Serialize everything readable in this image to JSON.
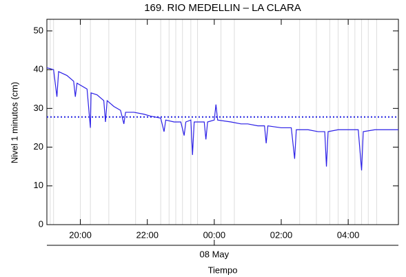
{
  "chart_data": {
    "type": "line",
    "title": "169. RIO MEDELLIN – LA CLARA",
    "ylabel": "Nivel 1 minutos (cm)",
    "xlabel": "Tiempo",
    "xlim": [
      19.0,
      29.5
    ],
    "ylim": [
      0,
      53
    ],
    "yticks": [
      0,
      10,
      20,
      30,
      40,
      50
    ],
    "xticks": [
      {
        "value": 20,
        "label": "20:00"
      },
      {
        "value": 22,
        "label": "22:00"
      },
      {
        "value": 24,
        "label": "00:00"
      },
      {
        "value": 26,
        "label": "02:00"
      },
      {
        "value": 28,
        "label": "04:00"
      }
    ],
    "xticks2": [
      {
        "value": 24,
        "label": "08 May"
      }
    ],
    "reference_line": {
      "value": 27.8,
      "color": "#2020e0"
    },
    "vertical_lines": {
      "color": "#dddddd",
      "x": [
        19.1,
        19.2,
        20.0,
        20.3,
        20.85,
        21.65,
        22.4,
        22.65,
        22.85,
        23.05,
        23.3,
        23.5,
        24.2,
        24.6,
        26.55,
        27.05,
        27.45,
        27.7,
        28.0,
        28.2,
        28.4,
        28.6,
        28.85
      ]
    },
    "series": [
      {
        "name": "Nivel",
        "color": "#2a1ee6",
        "x": [
          19.0,
          19.2,
          19.3,
          19.35,
          19.6,
          19.8,
          19.85,
          19.9,
          20.2,
          20.3,
          20.32,
          20.5,
          20.7,
          20.75,
          20.8,
          21.0,
          21.2,
          21.3,
          21.35,
          21.6,
          21.9,
          22.1,
          22.4,
          22.5,
          22.55,
          22.8,
          23.0,
          23.1,
          23.15,
          23.3,
          23.35,
          23.4,
          23.7,
          23.75,
          23.8,
          24.0,
          24.05,
          24.1,
          24.5,
          24.8,
          25.0,
          25.3,
          25.5,
          25.55,
          25.6,
          26.0,
          26.3,
          26.4,
          26.45,
          26.8,
          27.1,
          27.3,
          27.35,
          27.4,
          27.7,
          28.0,
          28.3,
          28.4,
          28.45,
          28.8,
          29.1,
          29.5
        ],
        "values": [
          40.5,
          40,
          33,
          39.5,
          38.5,
          37,
          33,
          36.5,
          35,
          25,
          34,
          33.5,
          32,
          26.5,
          32,
          30.5,
          29.5,
          26,
          29,
          29,
          28.5,
          28,
          27.5,
          24,
          27,
          26.5,
          26.5,
          23,
          26.5,
          27,
          18,
          26.5,
          26.5,
          22,
          26.5,
          27,
          31,
          27,
          26.5,
          26,
          26,
          25.5,
          25.5,
          21,
          25.5,
          25,
          25,
          17,
          24.5,
          24.5,
          24,
          24,
          15,
          24,
          24.5,
          24.5,
          24.5,
          14,
          24,
          24.5,
          24.5,
          24.5
        ]
      }
    ]
  }
}
